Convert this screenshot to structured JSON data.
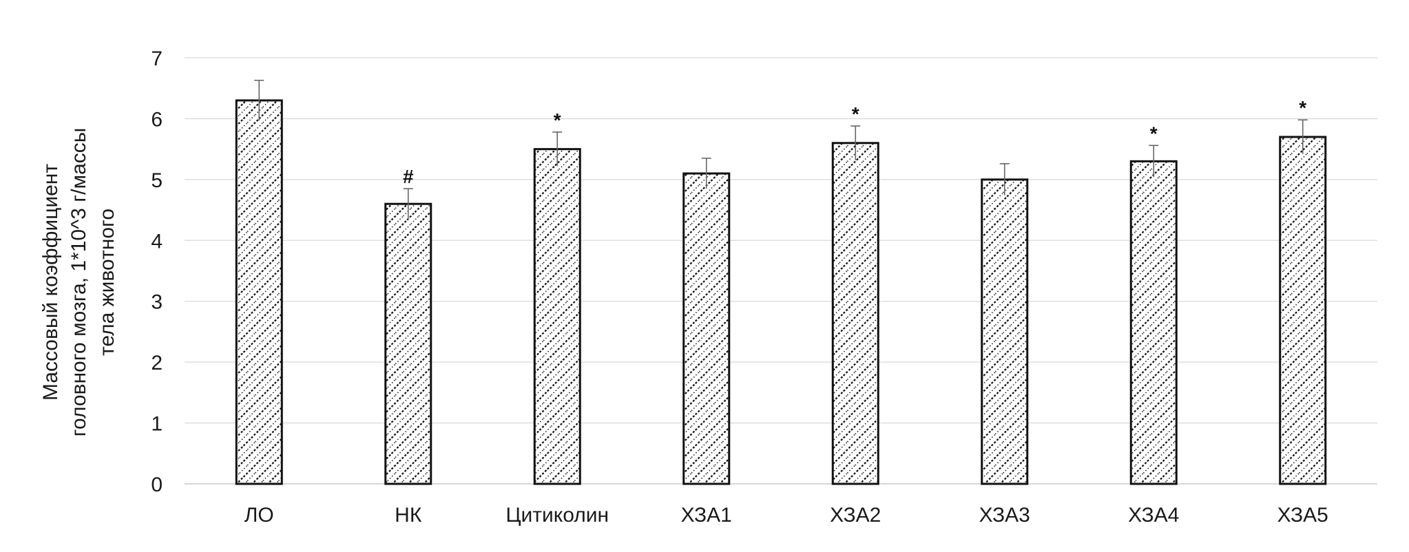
{
  "chart_data": {
    "type": "bar",
    "categories": [
      "ЛО",
      "НК",
      "Цитиколин",
      "ХЗА1",
      "ХЗА2",
      "ХЗА3",
      "ХЗА4",
      "ХЗА5"
    ],
    "values": [
      6.3,
      4.6,
      5.5,
      5.1,
      5.6,
      5.0,
      5.3,
      5.7
    ],
    "errors": [
      0.33,
      0.25,
      0.28,
      0.25,
      0.28,
      0.26,
      0.26,
      0.28
    ],
    "annotations": [
      "",
      "#",
      "*",
      "",
      "*",
      "",
      "*",
      "*"
    ],
    "ylabel": "Массовый коэффициент головного мозга, 1*10^3 г/массы тела животного",
    "ylabel_lines": [
      "Массовый коэффициент",
      "головного мозга, 1*10^3 г/массы",
      "тела животного"
    ],
    "ylim": [
      0,
      7
    ],
    "yticks": [
      0,
      1,
      2,
      3,
      4,
      5,
      6,
      7
    ],
    "grid": true,
    "colors": {
      "bar_fill": "#ffffff",
      "bar_pattern": "#111111",
      "bar_edge": "#111111",
      "grid": "#d9d9d9",
      "error_bar": "#666666"
    }
  }
}
